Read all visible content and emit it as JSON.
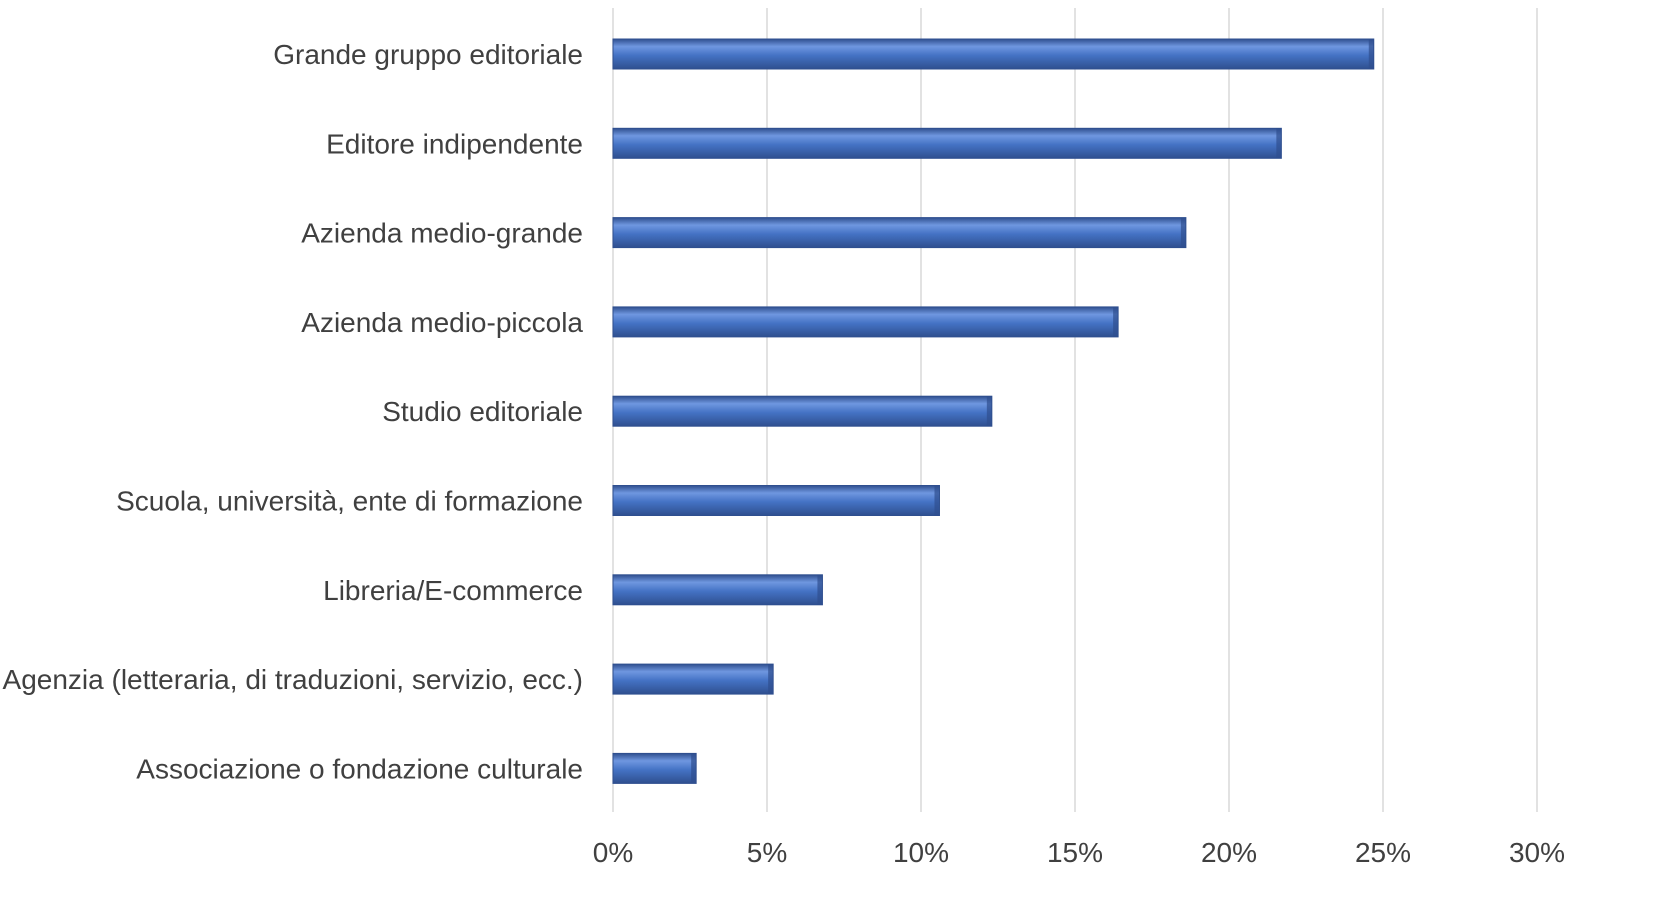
{
  "chart_data": {
    "type": "bar",
    "orientation": "horizontal",
    "title": "",
    "xlabel": "",
    "ylabel": "",
    "categories": [
      "Grande gruppo editoriale",
      "Editore indipendente",
      "Azienda medio-grande",
      "Azienda medio-piccola",
      "Studio editoriale",
      "Scuola, università, ente di formazione",
      "Libreria/E-commerce",
      "Agenzia (letteraria, di traduzioni, servizio, ecc.)",
      "Associazione o fondazione culturale"
    ],
    "values": [
      0.247,
      0.217,
      0.186,
      0.164,
      0.123,
      0.106,
      0.068,
      0.052,
      0.027
    ],
    "xlim": [
      0,
      0.3
    ],
    "x_ticks": [
      0,
      0.05,
      0.1,
      0.15,
      0.2,
      0.25,
      0.3
    ],
    "x_tick_labels": [
      "0%",
      "5%",
      "10%",
      "15%",
      "20%",
      "25%",
      "30%"
    ],
    "grid": "vertical",
    "legend": "none",
    "bar_color": "#4472c4",
    "bar_dark_color": "#2f4f8f",
    "bar_light_color": "#6f97e0"
  }
}
